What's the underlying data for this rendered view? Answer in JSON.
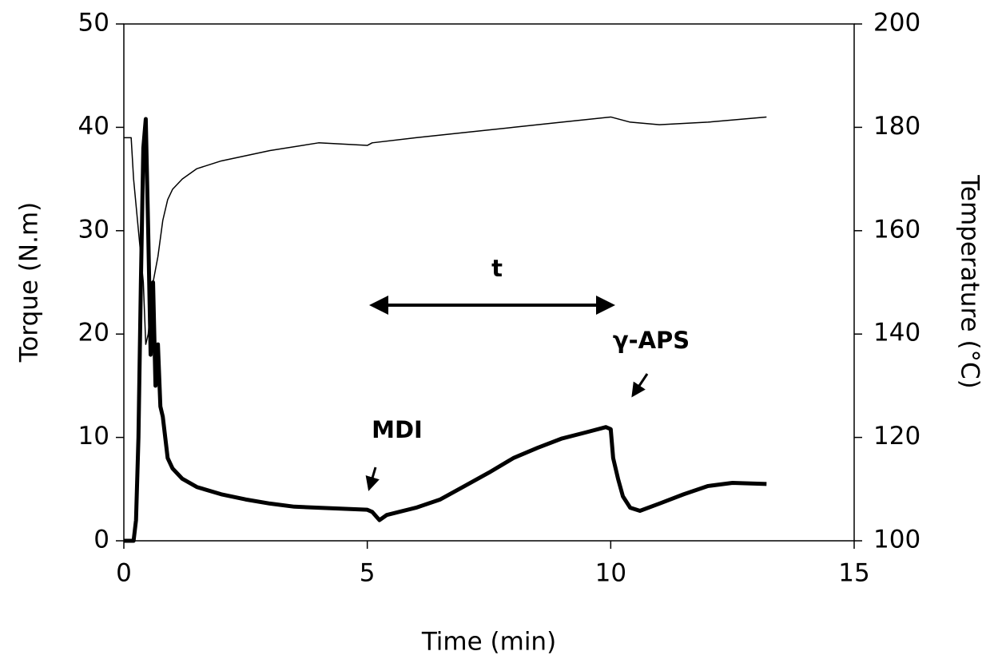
{
  "chart_data": {
    "type": "line",
    "xlabel": "Time (min)",
    "ylabel": "Torque (N.m)",
    "y2label": "Temperature (°C)",
    "xlim": [
      0,
      15
    ],
    "xticks": [
      0,
      5,
      10,
      15
    ],
    "ylim": [
      0,
      50
    ],
    "yticks": [
      0,
      10,
      20,
      30,
      40,
      50
    ],
    "y2lim": [
      100,
      200
    ],
    "y2ticks": [
      100,
      120,
      140,
      160,
      180,
      200
    ],
    "annotations": [
      "t",
      "MDI",
      "γ-APS"
    ],
    "series": [
      {
        "name": "Torque",
        "color": "#000000",
        "x": [
          0,
          0.2,
          0.25,
          0.3,
          0.35,
          0.4,
          0.45,
          0.5,
          0.55,
          0.6,
          0.65,
          0.7,
          0.75,
          0.8,
          0.9,
          1.0,
          1.2,
          1.5,
          2,
          2.5,
          3,
          3.5,
          4,
          4.5,
          5,
          5.1,
          5.25,
          5.4,
          6,
          6.5,
          7,
          7.5,
          8,
          8.5,
          9,
          9.5,
          9.9,
          10,
          10.05,
          10.15,
          10.25,
          10.4,
          10.6,
          11,
          11.5,
          12,
          12.5,
          13.2
        ],
        "values": [
          0,
          0,
          2,
          10,
          25,
          38,
          40.8,
          30,
          18,
          25,
          15,
          19,
          13,
          12,
          8,
          7,
          6,
          5.2,
          4.5,
          4,
          3.6,
          3.3,
          3.2,
          3.1,
          3.0,
          2.8,
          2,
          2.5,
          3.2,
          4,
          5.3,
          6.6,
          8,
          9,
          9.9,
          10.5,
          11,
          10.8,
          8,
          6,
          4.3,
          3.2,
          2.9,
          3.6,
          4.5,
          5.3,
          5.6,
          5.5
        ]
      },
      {
        "name": "Temperature",
        "color": "#000000",
        "axis": "y2",
        "x": [
          0,
          0.15,
          0.2,
          0.3,
          0.4,
          0.45,
          0.5,
          0.55,
          0.6,
          0.7,
          0.8,
          0.9,
          1.0,
          1.2,
          1.5,
          2,
          2.5,
          3,
          4,
          5,
          5.1,
          6,
          7,
          8,
          9,
          10,
          10.4,
          11,
          12,
          13.2
        ],
        "values": [
          178,
          178,
          170,
          160,
          150,
          138,
          140,
          145,
          150,
          155,
          162,
          166,
          168,
          170,
          172,
          173.5,
          174.5,
          175.5,
          177,
          176.5,
          177,
          178,
          179,
          180,
          181,
          182,
          181,
          180.5,
          181,
          182
        ]
      }
    ]
  }
}
